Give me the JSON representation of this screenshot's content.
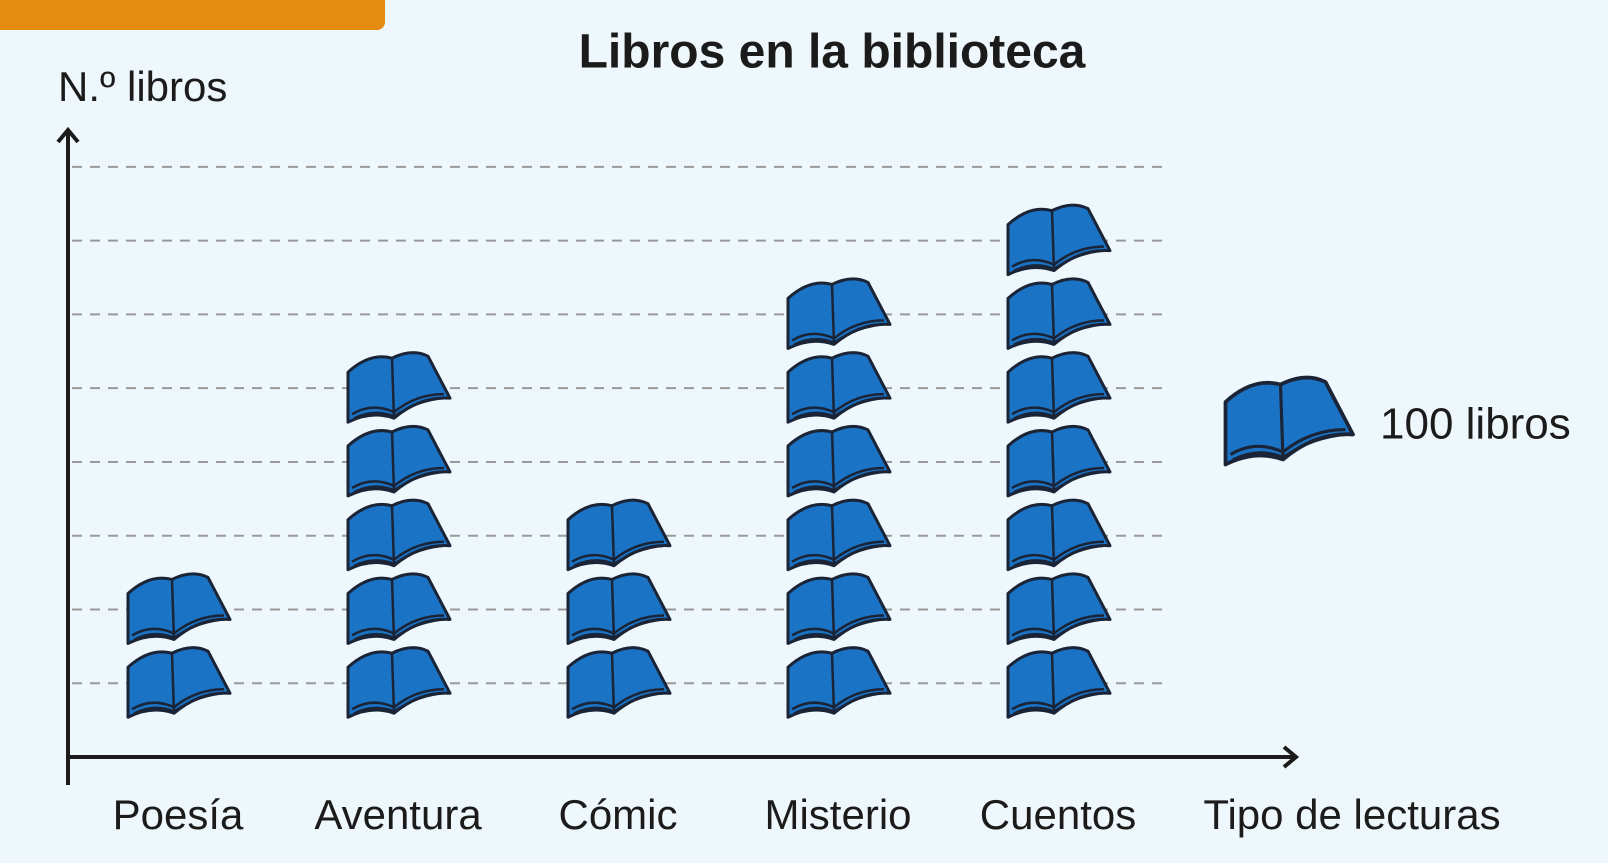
{
  "chart_data": {
    "type": "pictogram",
    "title": "Libros en la biblioteca",
    "y_label": "N.º libros",
    "x_label": "Tipo de lecturas",
    "categories": [
      "Poesía",
      "Aventura",
      "Cómic",
      "Misterio",
      "Cuentos"
    ],
    "values": [
      200,
      500,
      300,
      600,
      700
    ],
    "legend": {
      "label": "100 libros",
      "value": 100
    },
    "color": "#1a73c5",
    "ylim": [
      0,
      850
    ],
    "yticks": [
      100,
      200,
      300,
      400,
      500,
      600,
      700,
      800
    ],
    "grid": true
  }
}
